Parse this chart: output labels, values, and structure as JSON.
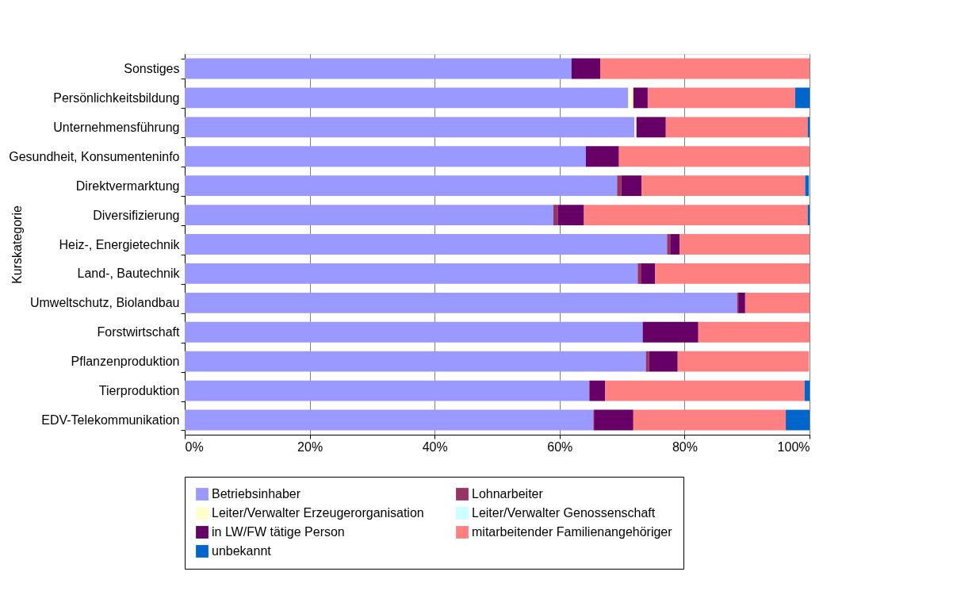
{
  "chart_data": {
    "type": "bar",
    "orientation": "horizontal",
    "stacked": true,
    "ylabel": "Kurskategorie",
    "categories": [
      "Sonstiges",
      "Persönlichkeitsbildung",
      "Unternehmensführung",
      "Gesundheit, Konsumenteninfo",
      "Direktvermarktung",
      "Diversifizierung",
      "Heiz-, Energietechnik",
      "Land-, Bautechnik",
      "Umweltschutz, Biolandbau",
      "Forstwirtschaft",
      "Pflanzenproduktion",
      "Tierproduktion",
      "EDV-Telekommunikation"
    ],
    "series": [
      {
        "name": "Betriebsinhaber",
        "color": "#9999ff",
        "values": [
          61.9,
          71.0,
          72.0,
          64.2,
          69.2,
          59.0,
          77.2,
          72.5,
          88.4,
          73.3,
          73.8,
          64.7,
          65.4
        ]
      },
      {
        "name": "Lohnarbeiter",
        "color": "#993366",
        "values": [
          null,
          null,
          null,
          null,
          0.7,
          0.7,
          0.5,
          0.5,
          0.2,
          null,
          0.5,
          0.1,
          0.1
        ]
      },
      {
        "name": "Leiter/Verwalter Erzeugerorganisation",
        "color": "#ffffcc",
        "values": [
          null,
          0.8,
          0.3,
          null,
          null,
          null,
          null,
          null,
          null,
          null,
          null,
          null,
          null
        ]
      },
      {
        "name": "Leiter/Verwalter Genossenschaft",
        "color": "#ccffff",
        "values": [
          null,
          null,
          null,
          null,
          null,
          null,
          null,
          null,
          null,
          null,
          null,
          null,
          null
        ]
      },
      {
        "name": "in LW/FW tätige Person",
        "color": "#660066",
        "values": [
          4.6,
          2.3,
          4.7,
          5.3,
          3.2,
          4.2,
          1.5,
          2.3,
          1.1,
          8.9,
          4.6,
          2.5,
          6.3
        ]
      },
      {
        "name": "mitarbeitender Familienangehöriger",
        "color": "#ff8080",
        "values": [
          33.5,
          23.6,
          22.7,
          30.5,
          26.2,
          35.8,
          20.8,
          24.7,
          10.3,
          17.8,
          21.0,
          31.9,
          24.4
        ]
      },
      {
        "name": "unbekannt",
        "color": "#0066cc",
        "values": [
          null,
          2.3,
          0.3,
          null,
          0.6,
          0.3,
          null,
          null,
          null,
          null,
          null,
          0.8,
          3.8
        ]
      }
    ],
    "xlim": [
      0,
      100
    ],
    "xticks": [
      {
        "value": 0,
        "label": "0%"
      },
      {
        "value": 20,
        "label": "20%"
      },
      {
        "value": 40,
        "label": "40%"
      },
      {
        "value": 60,
        "label": "60%"
      },
      {
        "value": 80,
        "label": "80%"
      },
      {
        "value": 100,
        "label": "100%"
      }
    ],
    "grid": "x",
    "legend": "bottom"
  }
}
